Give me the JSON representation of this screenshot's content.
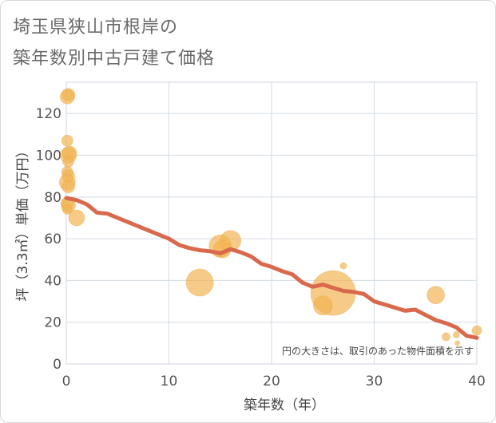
{
  "chart_data": {
    "type": "scatter",
    "title_lines": [
      "埼玉県狭山市根岸の",
      "築年数別中古戸建て価格"
    ],
    "xlabel": "築年数（年）",
    "ylabel": "坪（3.3㎡）単価（万円）",
    "xlim": [
      0,
      40
    ],
    "ylim": [
      0,
      135
    ],
    "xticks": [
      0,
      10,
      20,
      30,
      40
    ],
    "yticks": [
      0,
      20,
      40,
      60,
      80,
      100,
      120
    ],
    "grid": true,
    "note": "円の大きさは、取引のあった物件面積を示す",
    "colors": {
      "bubble": "#f2b354",
      "trend": "#d9694d",
      "grid": "#d3dbe3"
    },
    "scatter": [
      {
        "x": 0.2,
        "y": 129,
        "size": 8
      },
      {
        "x": 0.1,
        "y": 128,
        "size": 9
      },
      {
        "x": 0.1,
        "y": 107,
        "size": 7
      },
      {
        "x": 0.3,
        "y": 101,
        "size": 9
      },
      {
        "x": 0.2,
        "y": 100,
        "size": 10
      },
      {
        "x": 0.2,
        "y": 97,
        "size": 7
      },
      {
        "x": 0.1,
        "y": 92,
        "size": 7
      },
      {
        "x": 0.2,
        "y": 90,
        "size": 8
      },
      {
        "x": 0.1,
        "y": 87,
        "size": 10
      },
      {
        "x": 0.2,
        "y": 85,
        "size": 8
      },
      {
        "x": 0.1,
        "y": 77,
        "size": 8
      },
      {
        "x": 0.2,
        "y": 76,
        "size": 9
      },
      {
        "x": 0.1,
        "y": 74,
        "size": 6
      },
      {
        "x": 1.0,
        "y": 70,
        "size": 10
      },
      {
        "x": 13.0,
        "y": 39,
        "size": 17
      },
      {
        "x": 15.0,
        "y": 56.5,
        "size": 14
      },
      {
        "x": 15.2,
        "y": 55,
        "size": 11
      },
      {
        "x": 16.0,
        "y": 59,
        "size": 13
      },
      {
        "x": 26.0,
        "y": 34,
        "size": 28
      },
      {
        "x": 25.0,
        "y": 28,
        "size": 12
      },
      {
        "x": 27.0,
        "y": 47,
        "size": 4
      },
      {
        "x": 36.0,
        "y": 33,
        "size": 11
      },
      {
        "x": 37.0,
        "y": 13,
        "size": 5
      },
      {
        "x": 38.0,
        "y": 14,
        "size": 4
      },
      {
        "x": 38.1,
        "y": 10,
        "size": 3
      },
      {
        "x": 40.0,
        "y": 16,
        "size": 6
      }
    ],
    "trend_line": {
      "x": [
        0,
        1,
        2,
        3,
        4,
        5,
        6,
        7,
        8,
        9,
        10,
        11,
        12,
        13,
        14,
        15,
        16,
        17,
        18,
        19,
        20,
        21,
        22,
        23,
        24,
        25,
        26,
        27,
        28,
        29,
        30,
        31,
        32,
        33,
        34,
        35,
        36,
        37,
        38,
        39,
        40
      ],
      "y": [
        79.5,
        78.5,
        76.5,
        72.5,
        72,
        70,
        68,
        66,
        64,
        62,
        60,
        57,
        55.5,
        54.5,
        54,
        53,
        55,
        53.5,
        51.5,
        48,
        46.5,
        44.5,
        43,
        39,
        37,
        38,
        36.5,
        35,
        34.5,
        33.5,
        30,
        28.5,
        27,
        25.5,
        26,
        23.5,
        21,
        19.5,
        17.5,
        13.5,
        12.5
      ]
    }
  }
}
